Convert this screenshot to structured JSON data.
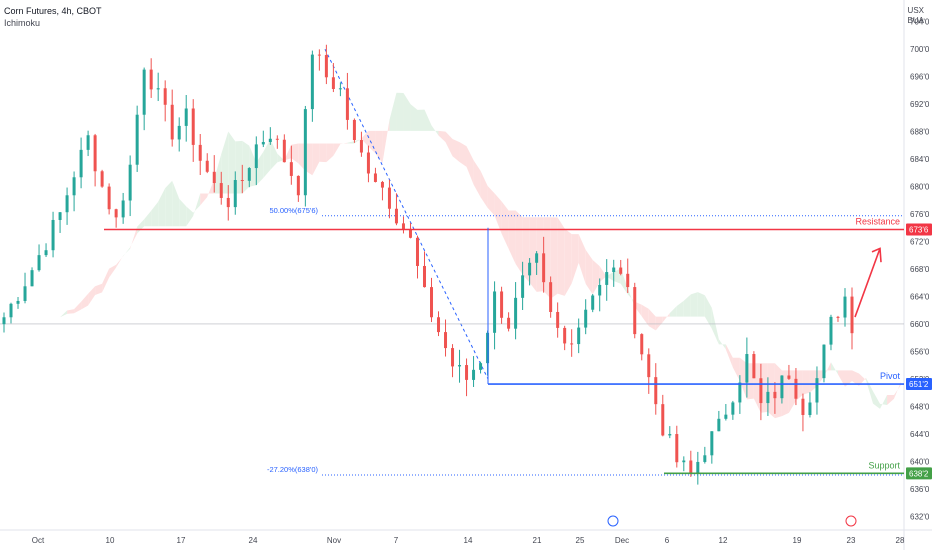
{
  "header": {
    "title": "Corn Futures, 4h, CBOT",
    "indicator": "Ichimoku",
    "currency_line1": "USX",
    "currency_line2": "BUA"
  },
  "colors": {
    "resistance": "#f23645",
    "pivot": "#2962ff",
    "support": "#43a047",
    "candle_up": "#26a69a",
    "candle_down": "#ef5350",
    "cloud_bull": "#e3f2e6",
    "cloud_bear": "#fde0e0",
    "fib": "#2962ff",
    "current_price": "#b2b5be"
  },
  "chart_data": {
    "type": "candlestick",
    "title": "Corn Futures, 4h, CBOT",
    "indicator": "Ichimoku",
    "y_ticks": [
      "632'0",
      "636'0",
      "640'0",
      "644'0",
      "648'0",
      "652'0",
      "656'0",
      "660'0",
      "664'0",
      "668'0",
      "672'0",
      "676'0",
      "680'0",
      "684'0",
      "688'0",
      "692'0",
      "696'0",
      "700'0",
      "704'0"
    ],
    "ylim": [
      630,
      706
    ],
    "x_ticks": [
      "Oct",
      "10",
      "17",
      "24",
      "Nov",
      "7",
      "14",
      "21",
      "25",
      "Dec",
      "6",
      "12",
      "19",
      "23",
      "28"
    ],
    "levels": [
      {
        "name": "Resistance",
        "value": "673'6",
        "price": 673.75
      },
      {
        "name": "Pivot",
        "value": "651'2",
        "price": 651.25
      },
      {
        "name": "Support",
        "value": "638'2",
        "price": 638.25
      }
    ],
    "fib_levels": [
      {
        "label": "50.00%(675'6)",
        "price": 675.75
      },
      {
        "label": "-27.20%(638'0)",
        "price": 638.0
      }
    ],
    "current_price": 660.0,
    "price_path": [
      [
        0,
        661
      ],
      [
        4,
        668
      ],
      [
        8,
        676
      ],
      [
        10,
        682
      ],
      [
        12,
        687
      ],
      [
        14,
        680
      ],
      [
        16,
        675
      ],
      [
        18,
        683
      ],
      [
        20,
        698
      ],
      [
        22,
        693
      ],
      [
        24,
        688
      ],
      [
        26,
        690
      ],
      [
        28,
        684
      ],
      [
        30,
        680
      ],
      [
        32,
        678
      ],
      [
        34,
        681
      ],
      [
        36,
        686
      ],
      [
        38,
        688
      ],
      [
        40,
        684
      ],
      [
        42,
        680
      ],
      [
        44,
        700
      ],
      [
        46,
        696
      ],
      [
        48,
        694
      ],
      [
        50,
        686
      ],
      [
        52,
        683
      ],
      [
        54,
        680
      ],
      [
        56,
        676
      ],
      [
        58,
        672
      ],
      [
        60,
        664
      ],
      [
        62,
        659
      ],
      [
        64,
        654
      ],
      [
        66,
        652
      ],
      [
        68,
        655
      ],
      [
        70,
        664
      ],
      [
        72,
        660
      ],
      [
        74,
        666
      ],
      [
        76,
        669
      ],
      [
        78,
        661
      ],
      [
        80,
        657
      ],
      [
        82,
        660
      ],
      [
        84,
        665
      ],
      [
        86,
        667
      ],
      [
        88,
        668
      ],
      [
        90,
        660
      ],
      [
        92,
        652
      ],
      [
        94,
        645
      ],
      [
        96,
        640
      ],
      [
        98,
        638
      ],
      [
        100,
        642
      ],
      [
        102,
        645
      ],
      [
        104,
        650
      ],
      [
        106,
        655
      ],
      [
        108,
        648
      ],
      [
        110,
        650
      ],
      [
        112,
        653
      ],
      [
        114,
        648
      ],
      [
        116,
        652
      ],
      [
        118,
        660
      ],
      [
        120,
        664
      ],
      [
        121,
        660
      ]
    ]
  },
  "labels": {
    "resistance": "Resistance",
    "pivot": "Pivot",
    "support": "Support",
    "fib_50": "50.00%(675'6)",
    "fib_neg": "-27.20%(638'0)",
    "tag_resistance": "673'6",
    "tag_pivot": "651'2",
    "tag_support": "638'2"
  }
}
